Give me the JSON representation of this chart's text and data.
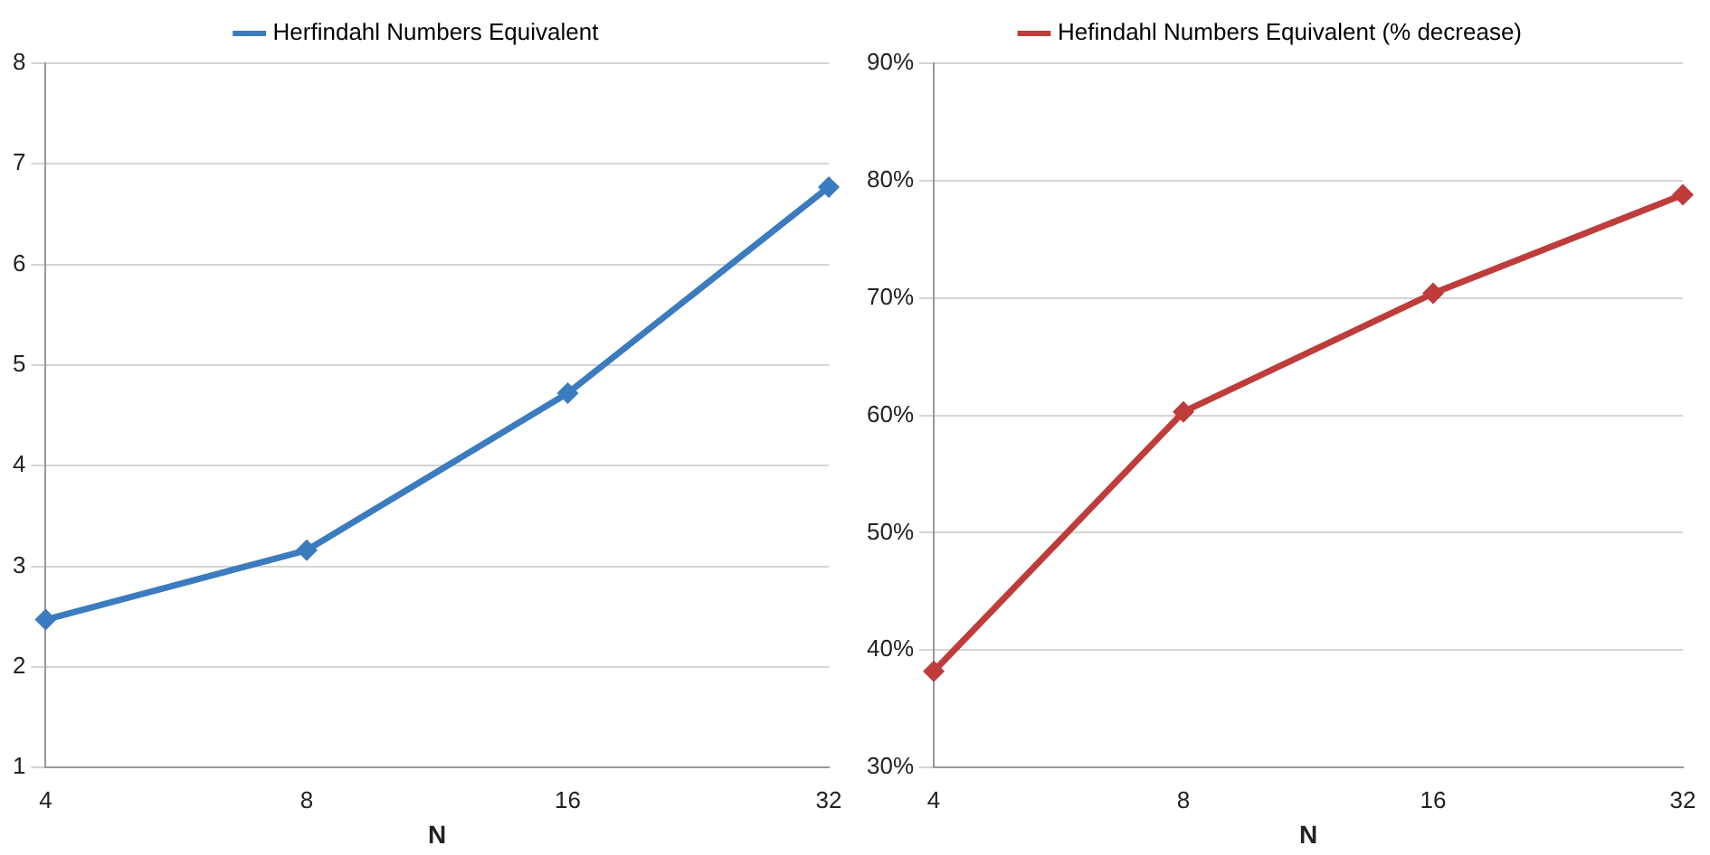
{
  "chart_data": [
    {
      "type": "line",
      "xlabel": "N",
      "categories": [
        "4",
        "8",
        "16",
        "32"
      ],
      "series": [
        {
          "name": "Herfindahl Numbers Equivalent",
          "color": "#3b7bbf",
          "values": [
            2.47,
            3.16,
            4.72,
            6.77
          ]
        }
      ],
      "ylim": [
        1,
        8
      ],
      "yticks": [
        1,
        2,
        3,
        4,
        5,
        6,
        7,
        8
      ],
      "grid": "y",
      "legend": "top",
      "marker": "diamond",
      "line_style": "solid"
    },
    {
      "type": "line",
      "xlabel": "N",
      "categories": [
        "4",
        "8",
        "16",
        "32"
      ],
      "series": [
        {
          "name": "Hefindahl Numbers Equivalent (% decrease)",
          "color": "#be3c3a",
          "values": [
            38.2,
            60.3,
            70.4,
            78.8
          ]
        }
      ],
      "ylim": [
        30,
        90
      ],
      "yticks": [
        {
          "value": 30,
          "label": "30%"
        },
        {
          "value": 40,
          "label": "40%"
        },
        {
          "value": 50,
          "label": "50%"
        },
        {
          "value": 60,
          "label": "60%"
        },
        {
          "value": 70,
          "label": "70%"
        },
        {
          "value": 80,
          "label": "80%"
        },
        {
          "value": 90,
          "label": "90%"
        }
      ],
      "grid": "y",
      "legend": "top",
      "marker": "diamond",
      "line_style": "solid"
    }
  ]
}
